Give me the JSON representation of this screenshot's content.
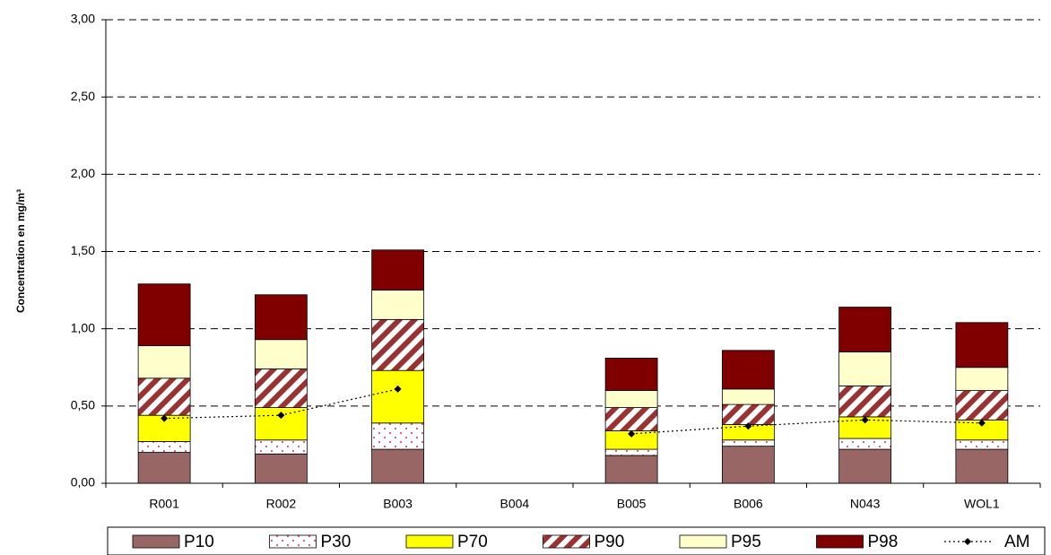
{
  "chart_data": {
    "type": "bar",
    "stacked": true,
    "y_label": "Concentration en mg/m³",
    "categories": [
      "R001",
      "R002",
      "B003",
      "B004",
      "B005",
      "B006",
      "N043",
      "WOL1"
    ],
    "series": [
      {
        "name": "P10",
        "color": "#996666",
        "pattern": "solid",
        "values": [
          0.2,
          0.19,
          0.22,
          null,
          0.18,
          0.24,
          0.22,
          0.22
        ]
      },
      {
        "name": "P30",
        "color": "#cc3366",
        "pattern": "dots",
        "values": [
          0.07,
          0.09,
          0.17,
          null,
          0.04,
          0.04,
          0.07,
          0.06
        ]
      },
      {
        "name": "P70",
        "color": "#ffff00",
        "pattern": "solid",
        "values": [
          0.17,
          0.21,
          0.34,
          null,
          0.12,
          0.1,
          0.14,
          0.13
        ]
      },
      {
        "name": "P90",
        "color": "#993333",
        "pattern": "diagonal",
        "values": [
          0.24,
          0.25,
          0.33,
          null,
          0.15,
          0.13,
          0.2,
          0.19
        ]
      },
      {
        "name": "P95",
        "color": "#ffffcc",
        "pattern": "solid",
        "values": [
          0.21,
          0.19,
          0.19,
          null,
          0.11,
          0.1,
          0.22,
          0.15
        ]
      },
      {
        "name": "P98",
        "color": "#800000",
        "pattern": "solid",
        "values": [
          0.4,
          0.29,
          0.26,
          null,
          0.21,
          0.25,
          0.29,
          0.29
        ]
      },
      {
        "name": "AM",
        "type": "line",
        "color": "#000000",
        "values": [
          0.42,
          0.44,
          0.61,
          null,
          0.32,
          0.37,
          0.41,
          0.39
        ]
      }
    ],
    "ylim": [
      0,
      3
    ],
    "yticks": [
      {
        "value": 0,
        "label": "0,00"
      },
      {
        "value": 0.5,
        "label": "0,50"
      },
      {
        "value": 1,
        "label": "1,00"
      },
      {
        "value": 1.5,
        "label": "1,50"
      },
      {
        "value": 2,
        "label": "2,00"
      },
      {
        "value": 2.5,
        "label": "2,50"
      },
      {
        "value": 3,
        "label": "3,00"
      }
    ],
    "grid": true,
    "legend": "bottom"
  }
}
